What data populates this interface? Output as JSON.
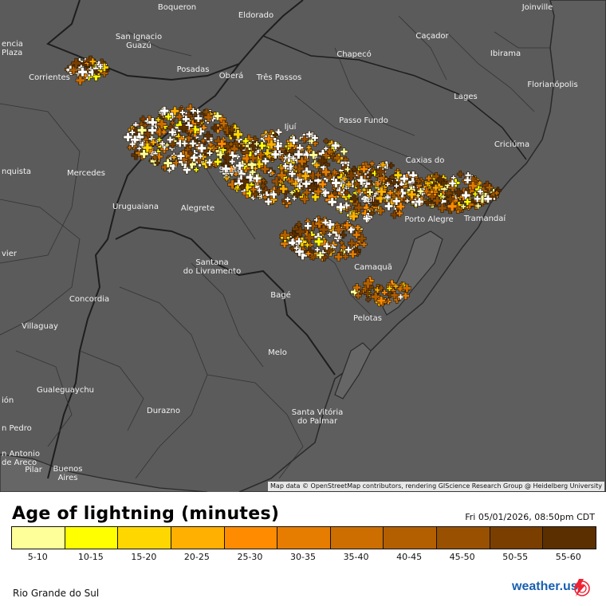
{
  "map": {
    "places": [
      {
        "name": "Boqueron",
        "cls": ""
      },
      {
        "name": "Eldorado",
        "cls": ""
      },
      {
        "name": "Joinville",
        "cls": ""
      },
      {
        "name": "encia\nPlaza",
        "cls": "left"
      },
      {
        "name": "San Ignacio\nGuazú",
        "cls": ""
      },
      {
        "name": "Caçador",
        "cls": ""
      },
      {
        "name": "Chapecó",
        "cls": ""
      },
      {
        "name": "Ibirama",
        "cls": ""
      },
      {
        "name": "Posadas",
        "cls": ""
      },
      {
        "name": "Oberá",
        "cls": ""
      },
      {
        "name": "Três Passos",
        "cls": ""
      },
      {
        "name": "Corrientes",
        "cls": ""
      },
      {
        "name": "Florianópolis",
        "cls": ""
      },
      {
        "name": "Lages",
        "cls": ""
      },
      {
        "name": "Passo Fundo",
        "cls": ""
      },
      {
        "name": "Ijuí",
        "cls": ""
      },
      {
        "name": "Caxias do",
        "cls": ""
      },
      {
        "name": "Criciúma",
        "cls": ""
      },
      {
        "name": "nquista",
        "cls": "left"
      },
      {
        "name": "Mercedes",
        "cls": ""
      },
      {
        "name": "Santa",
        "cls": ""
      },
      {
        "name": "Sul",
        "cls": ""
      },
      {
        "name": "Uruguaiana",
        "cls": ""
      },
      {
        "name": "Alegrete",
        "cls": ""
      },
      {
        "name": "Porto Alegre",
        "cls": ""
      },
      {
        "name": "Tramandaí",
        "cls": ""
      },
      {
        "name": "vier",
        "cls": "left"
      },
      {
        "name": "Santana\ndo Livramento",
        "cls": ""
      },
      {
        "name": "Camaquã",
        "cls": ""
      },
      {
        "name": "Bagé",
        "cls": ""
      },
      {
        "name": "Concordia",
        "cls": ""
      },
      {
        "name": "Pelotas",
        "cls": ""
      },
      {
        "name": "Villaguay",
        "cls": ""
      },
      {
        "name": "Melo",
        "cls": ""
      },
      {
        "name": "Gualeguaychu",
        "cls": ""
      },
      {
        "name": "ión",
        "cls": "left"
      },
      {
        "name": "Durazno",
        "cls": ""
      },
      {
        "name": "Santa Vitória\ndo Palmar",
        "cls": ""
      },
      {
        "name": "n Pedro",
        "cls": "left"
      },
      {
        "name": "n Antonio\nde Areco",
        "cls": "left"
      },
      {
        "name": "Pilar",
        "cls": ""
      },
      {
        "name": "Buenos\nAires",
        "cls": ""
      }
    ],
    "attribution": "Map data © OpenStreetMap contributors, rendering GIScience Research Group @ Heidelberg University"
  },
  "legend": {
    "title": "Age of lightning (minutes)",
    "timestamp": "Fri 05/01/2026, 08:50pm CDT",
    "bins": [
      {
        "label": "5-10",
        "color": "#ffff99"
      },
      {
        "label": "10-15",
        "color": "#ffff00"
      },
      {
        "label": "15-20",
        "color": "#ffd700"
      },
      {
        "label": "20-25",
        "color": "#ffb000"
      },
      {
        "label": "25-30",
        "color": "#ff8c00"
      },
      {
        "label": "30-35",
        "color": "#e67c00"
      },
      {
        "label": "35-40",
        "color": "#cc6e00"
      },
      {
        "label": "40-45",
        "color": "#b35f00"
      },
      {
        "label": "45-50",
        "color": "#995000"
      },
      {
        "label": "50-55",
        "color": "#7a3f00"
      },
      {
        "label": "55-60",
        "color": "#5c2f00"
      }
    ],
    "recent_color": "#ffffff"
  },
  "footer": {
    "region": "Rio Grande do Sul",
    "logo_text": "weather.us"
  }
}
